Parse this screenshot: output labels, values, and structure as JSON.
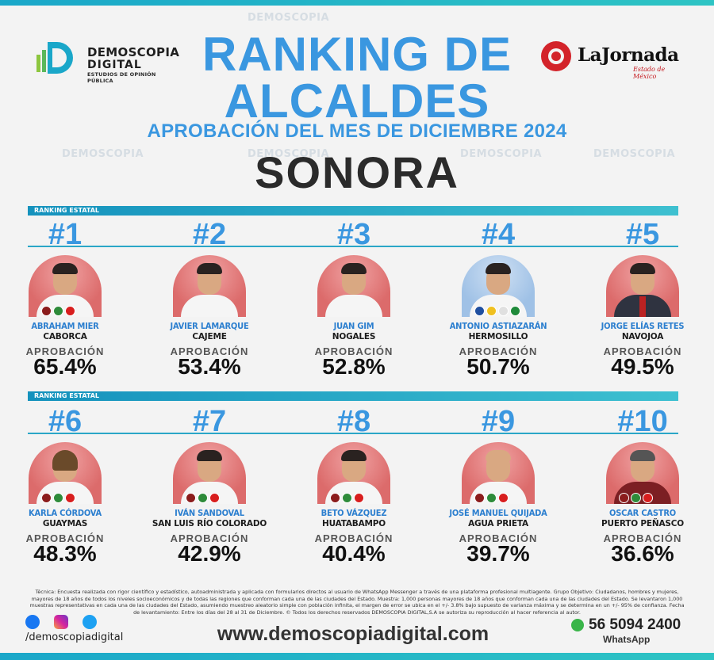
{
  "brand": {
    "name_line1": "DEMOSCOPIA",
    "name_line2": "DIGITAL",
    "tagline": "ESTUDIOS DE OPINIÓN PÚBLICA"
  },
  "partner": {
    "name": "LaJornada",
    "sub": "Estado de México"
  },
  "header": {
    "title_line1": "RANKING DE",
    "title_line2": "ALCALDES",
    "subtitle": "APROBACIÓN DEL MES DE DICIEMBRE 2024",
    "state": "SONORA"
  },
  "section_label": "RANKING ESTATAL",
  "approval_label": "APROBACIÓN",
  "rows": [
    [
      {
        "rank": "#1",
        "name": "ABRAHAM MIER",
        "city": "CABORCA",
        "approval": "65.4%"
      },
      {
        "rank": "#2",
        "name": "JAVIER LAMARQUE",
        "city": "CAJEME",
        "approval": "53.4%"
      },
      {
        "rank": "#3",
        "name": "JUAN GIM",
        "city": "NOGALES",
        "approval": "52.8%"
      },
      {
        "rank": "#4",
        "name": "ANTONIO ASTIAZARÁN",
        "city": "HERMOSILLO",
        "approval": "50.7%"
      },
      {
        "rank": "#5",
        "name": "JORGE ELÍAS RETES",
        "city": "NAVOJOA",
        "approval": "49.5%"
      }
    ],
    [
      {
        "rank": "#6",
        "name": "KARLA CÓRDOVA",
        "city": "GUAYMAS",
        "approval": "48.3%"
      },
      {
        "rank": "#7",
        "name": "IVÁN SANDOVAL",
        "city": "SAN LUIS RÍO COLORADO",
        "approval": "42.9%"
      },
      {
        "rank": "#8",
        "name": "BETO VÁZQUEZ",
        "city": "HUATABAMPO",
        "approval": "40.4%"
      },
      {
        "rank": "#9",
        "name": "JOSÉ MANUEL QUIJADA",
        "city": "AGUA PRIETA",
        "approval": "39.7%"
      },
      {
        "rank": "#10",
        "name": "OSCAR CASTRO",
        "city": "PUERTO PEÑASCO",
        "approval": "36.6%"
      }
    ]
  ],
  "footer": {
    "note": "Técnica: Encuesta realizada con rigor científico y estadístico, autoadministrada y aplicada con formularios directos al usuario de WhatsApp Messenger a través de una plataforma profesional multiagente. Grupo Objetivo: Ciudadanos, hombres y mujeres, mayores de 18 años de todos los niveles socioeconómicos y de todas las regiones que conforman cada una de las ciudades del Estado. Muestra: 1,000 personas mayores de 18 años que conforman cada una de las ciudades del Estado. Se levantaron 1,000 muestras representativas en cada una de las ciudades del Estado, asumiendo muestreo aleatorio simple con población infinita, el margen de error se ubica en el +/- 3.8% bajo supuesto de varianza máxima y se determina en un +/- 95% de confianza. Fecha de levantamiento: Entre los días del 28 al 31 de Diciembre. © Todos los derechos reservados DEMOSCOPIA DIGITAL,S.A se autoriza su reproducción al hacer referencia al autor.",
    "handle": "/demoscopiadigital",
    "website": "www.demoscopiadigital.com",
    "phone": "56 5094 2400",
    "phone_label": "WhatsApp"
  },
  "colors": {
    "accent_blue": "#3a97e0",
    "bar_teal": "#1592bd",
    "photo_red": "#dc6b6b"
  }
}
